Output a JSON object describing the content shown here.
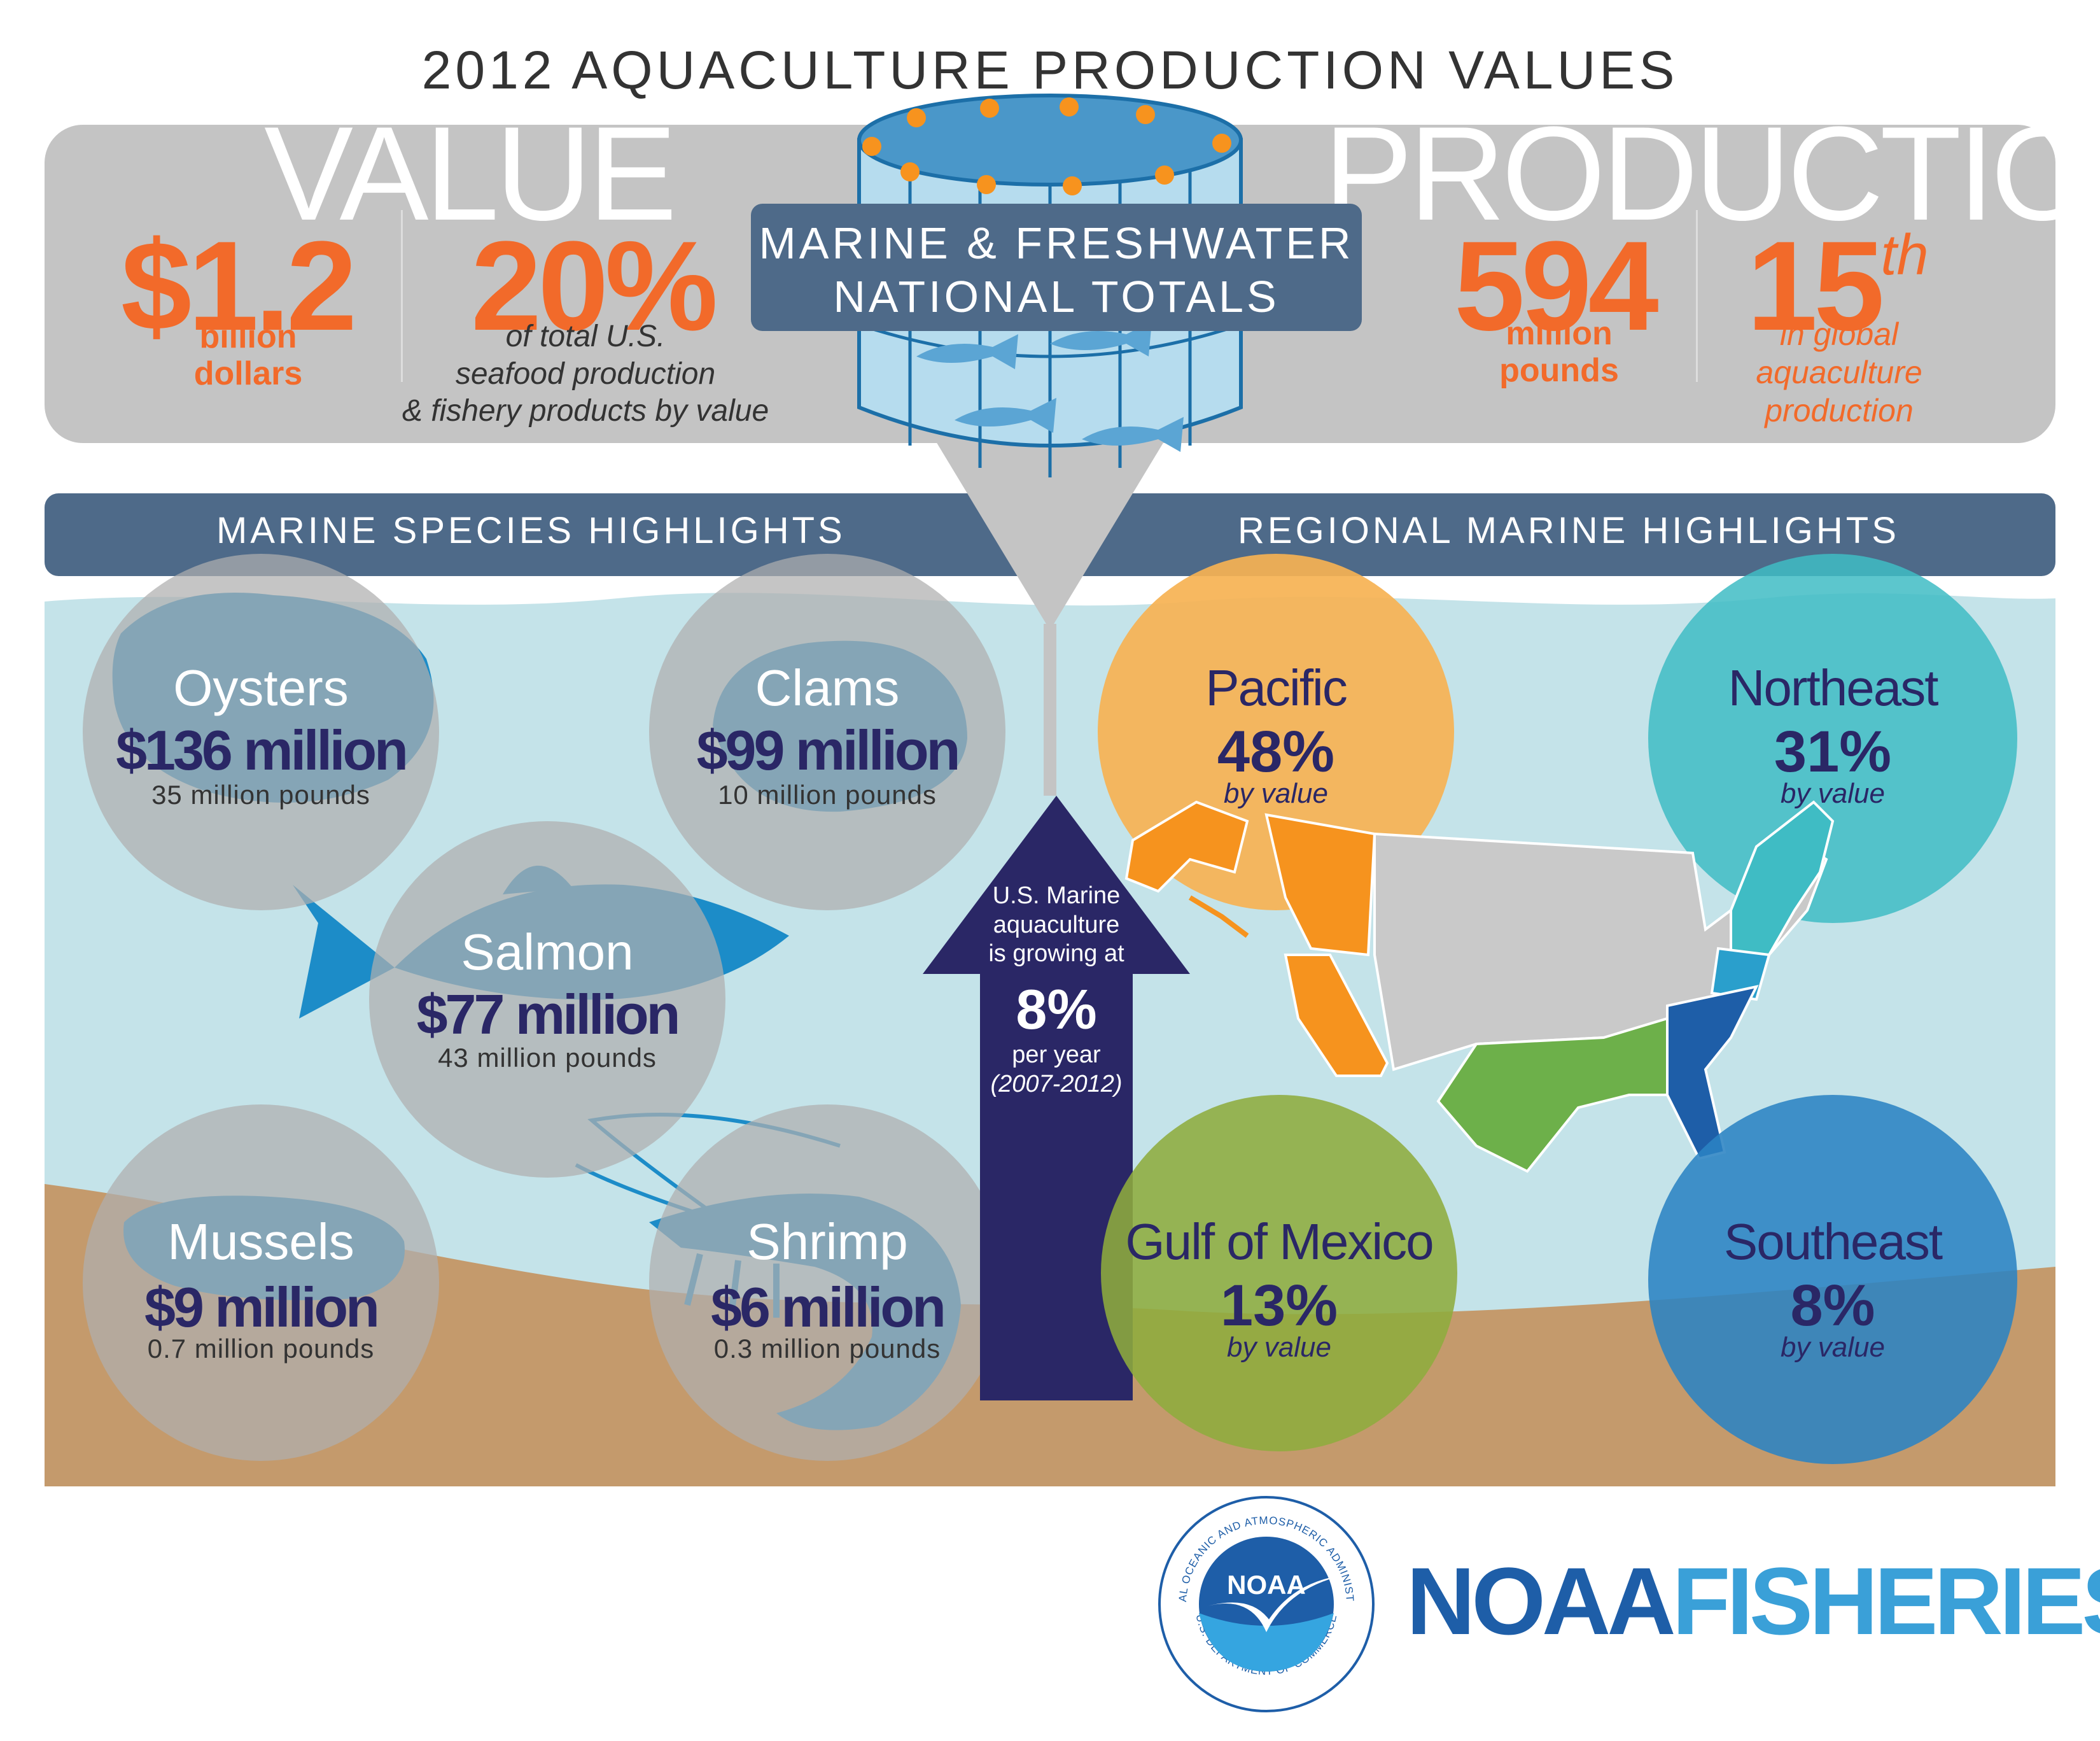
{
  "title": "2012 AQUACULTURE PRODUCTION VALUES",
  "value_section": {
    "heading": "VALUE",
    "stat1": {
      "number": "$1.2",
      "label_line1": "billion",
      "label_line2": "dollars"
    },
    "stat2": {
      "number": "20%",
      "line1": "of total U.S.",
      "line2": "seafood production",
      "line3": "& fishery products by value"
    }
  },
  "center_label": {
    "line1": "MARINE & FRESHWATER",
    "line2": "NATIONAL TOTALS"
  },
  "production_section": {
    "heading": "PRODUCTION",
    "stat1": {
      "number": "594",
      "label_line1": "million",
      "label_line2": "pounds"
    },
    "stat2": {
      "number": "15",
      "suffix": "th",
      "line1": "in global",
      "line2": "aquaculture",
      "line3": "production"
    }
  },
  "banners": {
    "left": "MARINE SPECIES HIGHLIGHTS",
    "right": "REGIONAL MARINE HIGHLIGHTS"
  },
  "species": [
    {
      "name": "Oysters",
      "value": "$136 million",
      "pounds": "35 million pounds"
    },
    {
      "name": "Clams",
      "value": "$99 million",
      "pounds": "10 million pounds"
    },
    {
      "name": "Salmon",
      "value": "$77 million",
      "pounds": "43 million pounds"
    },
    {
      "name": "Mussels",
      "value": "$9 million",
      "pounds": "0.7 million pounds"
    },
    {
      "name": "Shrimp",
      "value": "$6 million",
      "pounds": "0.3 million pounds"
    }
  ],
  "growth_arrow": {
    "line1": "U.S. Marine",
    "line2": "aquaculture",
    "line3": "is growing at",
    "rate": "8%",
    "line4": "per year",
    "period": "(2007-2012)"
  },
  "regions": [
    {
      "name": "Pacific",
      "percent": "48%",
      "by": "by value",
      "color": "#f6b253"
    },
    {
      "name": "Northeast",
      "percent": "31%",
      "by": "by value",
      "color": "#3fbcc4"
    },
    {
      "name": "Gulf of Mexico",
      "percent": "13%",
      "by": "by value",
      "color": "#8eac3e"
    },
    {
      "name": "Southeast",
      "percent": "8%",
      "by": "by value",
      "color": "#2b83c3"
    }
  ],
  "logo": {
    "badge_text": "NOAA",
    "ring_top": "NATIONAL OCEANIC AND ATMOSPHERIC ADMINISTRATION",
    "ring_bottom": "U.S. DEPARTMENT OF COMMERCE",
    "word1": "NOAA",
    "word2": "FISHERIES"
  },
  "colors": {
    "orange": "#f26a2a",
    "navy": "#2a2766",
    "banner": "#4e6a89",
    "water": "#c4e3e9",
    "sand": "#c49a6c",
    "species_blue": "#1c8cc8",
    "noaa_blue": "#1e5ea8"
  }
}
